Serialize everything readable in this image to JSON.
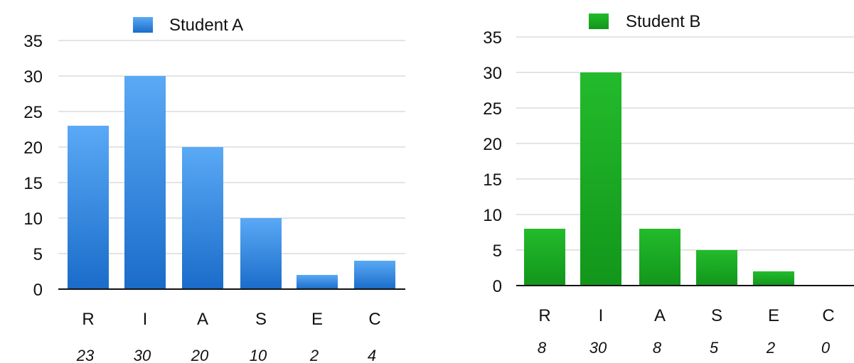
{
  "chart_data": [
    {
      "type": "bar",
      "categories": [
        "R",
        "I",
        "A",
        "S",
        "E",
        "C"
      ],
      "series": [
        {
          "name": "Student A",
          "values": [
            23,
            30,
            20,
            10,
            2,
            4
          ]
        }
      ],
      "value_labels": [
        "23",
        "30",
        "20",
        "10",
        "2",
        "4"
      ],
      "yticks": [
        "0",
        "5",
        "10",
        "15",
        "20",
        "25",
        "30",
        "35"
      ],
      "ylim": [
        0,
        35
      ],
      "grid": true,
      "legend_position": "top",
      "color": "#2f86e0"
    },
    {
      "type": "bar",
      "categories": [
        "R",
        "I",
        "A",
        "S",
        "E",
        "C"
      ],
      "series": [
        {
          "name": "Student B",
          "values": [
            8,
            30,
            8,
            5,
            2,
            0
          ]
        }
      ],
      "value_labels": [
        "8",
        "30",
        "8",
        "5",
        "2",
        "0"
      ],
      "yticks": [
        "0",
        "5",
        "10",
        "15",
        "20",
        "25",
        "30",
        "35"
      ],
      "ylim": [
        0,
        35
      ],
      "grid": true,
      "legend_position": "top",
      "color": "#1ea826"
    }
  ]
}
